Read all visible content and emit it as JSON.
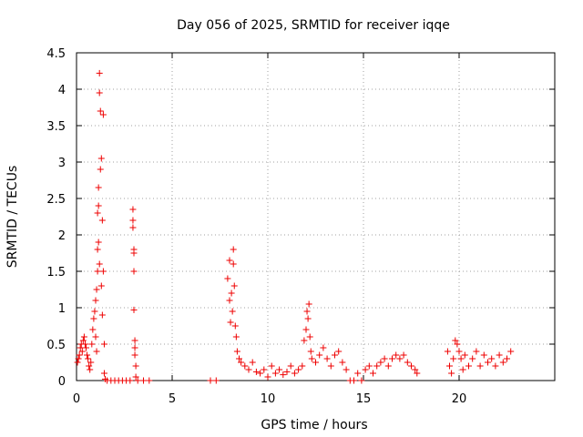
{
  "chart_data": {
    "type": "scatter",
    "title": "Day 056 of 2025, SRMTID for receiver iqqe",
    "xlabel": "GPS time / hours",
    "ylabel": "SRMTID / TECUs",
    "xlim": [
      0,
      25
    ],
    "ylim": [
      0,
      4.5
    ],
    "xticks": [
      "0",
      "5",
      "10",
      "15",
      "20"
    ],
    "xtick_values": [
      0,
      5,
      10,
      15,
      20
    ],
    "yticks": [
      "0",
      "0.5",
      "1",
      "1.5",
      "2",
      "2.5",
      "3",
      "3.5",
      "4",
      "4.5"
    ],
    "ytick_values": [
      0,
      0.5,
      1,
      1.5,
      2,
      2.5,
      3,
      3.5,
      4,
      4.5
    ],
    "grid": true,
    "marker": "plus",
    "color": "#ee0000",
    "series": [
      {
        "name": "SRMTID",
        "points": [
          [
            0.05,
            0.25
          ],
          [
            0.1,
            0.3
          ],
          [
            0.15,
            0.35
          ],
          [
            0.2,
            0.45
          ],
          [
            0.25,
            0.5
          ],
          [
            0.3,
            0.4
          ],
          [
            0.35,
            0.55
          ],
          [
            0.4,
            0.6
          ],
          [
            0.45,
            0.5
          ],
          [
            0.5,
            0.45
          ],
          [
            0.55,
            0.35
          ],
          [
            0.6,
            0.3
          ],
          [
            0.65,
            0.2
          ],
          [
            0.7,
            0.15
          ],
          [
            0.75,
            0.25
          ],
          [
            0.8,
            0.5
          ],
          [
            0.85,
            0.7
          ],
          [
            0.9,
            0.85
          ],
          [
            0.95,
            0.95
          ],
          [
            1.0,
            1.1
          ],
          [
            1.0,
            0.6
          ],
          [
            1.05,
            1.25
          ],
          [
            1.05,
            0.4
          ],
          [
            1.1,
            1.5
          ],
          [
            1.1,
            1.8
          ],
          [
            1.1,
            2.3
          ],
          [
            1.15,
            1.9
          ],
          [
            1.15,
            2.4
          ],
          [
            1.15,
            2.65
          ],
          [
            1.2,
            1.6
          ],
          [
            1.2,
            3.95
          ],
          [
            1.2,
            4.22
          ],
          [
            1.25,
            3.7
          ],
          [
            1.25,
            2.9
          ],
          [
            1.3,
            3.05
          ],
          [
            1.3,
            1.3
          ],
          [
            1.35,
            2.2
          ],
          [
            1.35,
            0.9
          ],
          [
            1.4,
            3.65
          ],
          [
            1.4,
            1.5
          ],
          [
            1.45,
            0.5
          ],
          [
            1.45,
            0.1
          ],
          [
            1.5,
            0.02
          ],
          [
            1.6,
            0.0
          ],
          [
            1.8,
            0.0
          ],
          [
            2.0,
            0.0
          ],
          [
            2.2,
            0.0
          ],
          [
            2.4,
            0.0
          ],
          [
            2.6,
            0.0
          ],
          [
            2.8,
            0.0
          ],
          [
            2.95,
            2.35
          ],
          [
            2.95,
            2.2
          ],
          [
            2.95,
            2.1
          ],
          [
            3.0,
            1.8
          ],
          [
            3.0,
            1.75
          ],
          [
            3.0,
            1.5
          ],
          [
            3.0,
            0.97
          ],
          [
            3.05,
            0.55
          ],
          [
            3.05,
            0.45
          ],
          [
            3.05,
            0.35
          ],
          [
            3.1,
            0.2
          ],
          [
            3.1,
            0.05
          ],
          [
            3.2,
            0.0
          ],
          [
            3.5,
            0.0
          ],
          [
            3.8,
            0.0
          ],
          [
            7.0,
            0.0
          ],
          [
            7.3,
            0.0
          ],
          [
            7.9,
            1.4
          ],
          [
            8.0,
            1.65
          ],
          [
            8.0,
            1.1
          ],
          [
            8.05,
            0.8
          ],
          [
            8.1,
            1.2
          ],
          [
            8.15,
            0.95
          ],
          [
            8.2,
            1.8
          ],
          [
            8.2,
            1.6
          ],
          [
            8.25,
            1.3
          ],
          [
            8.3,
            0.75
          ],
          [
            8.35,
            0.6
          ],
          [
            8.4,
            0.4
          ],
          [
            8.5,
            0.3
          ],
          [
            8.6,
            0.25
          ],
          [
            8.8,
            0.2
          ],
          [
            9.0,
            0.15
          ],
          [
            9.2,
            0.25
          ],
          [
            9.4,
            0.12
          ],
          [
            9.6,
            0.1
          ],
          [
            9.8,
            0.15
          ],
          [
            10.0,
            0.05
          ],
          [
            10.2,
            0.2
          ],
          [
            10.4,
            0.1
          ],
          [
            10.6,
            0.15
          ],
          [
            10.8,
            0.08
          ],
          [
            11.0,
            0.12
          ],
          [
            11.2,
            0.2
          ],
          [
            11.4,
            0.1
          ],
          [
            11.6,
            0.15
          ],
          [
            11.8,
            0.2
          ],
          [
            11.9,
            0.55
          ],
          [
            12.0,
            0.7
          ],
          [
            12.05,
            0.95
          ],
          [
            12.1,
            0.85
          ],
          [
            12.15,
            1.05
          ],
          [
            12.2,
            0.6
          ],
          [
            12.25,
            0.4
          ],
          [
            12.3,
            0.3
          ],
          [
            12.5,
            0.25
          ],
          [
            12.7,
            0.35
          ],
          [
            12.9,
            0.45
          ],
          [
            13.1,
            0.3
          ],
          [
            13.3,
            0.2
          ],
          [
            13.5,
            0.35
          ],
          [
            13.7,
            0.4
          ],
          [
            13.9,
            0.25
          ],
          [
            14.1,
            0.15
          ],
          [
            14.3,
            0.0
          ],
          [
            14.5,
            0.0
          ],
          [
            14.7,
            0.1
          ],
          [
            14.9,
            0.0
          ],
          [
            15.1,
            0.15
          ],
          [
            15.3,
            0.2
          ],
          [
            15.5,
            0.1
          ],
          [
            15.7,
            0.2
          ],
          [
            15.9,
            0.25
          ],
          [
            16.1,
            0.3
          ],
          [
            16.3,
            0.2
          ],
          [
            16.5,
            0.3
          ],
          [
            16.7,
            0.35
          ],
          [
            16.9,
            0.3
          ],
          [
            17.1,
            0.35
          ],
          [
            17.3,
            0.25
          ],
          [
            17.5,
            0.2
          ],
          [
            17.7,
            0.15
          ],
          [
            17.8,
            0.1
          ],
          [
            19.4,
            0.4
          ],
          [
            19.5,
            0.2
          ],
          [
            19.6,
            0.1
          ],
          [
            19.7,
            0.3
          ],
          [
            19.8,
            0.55
          ],
          [
            19.9,
            0.5
          ],
          [
            20.0,
            0.4
          ],
          [
            20.1,
            0.3
          ],
          [
            20.2,
            0.15
          ],
          [
            20.3,
            0.35
          ],
          [
            20.5,
            0.2
          ],
          [
            20.7,
            0.3
          ],
          [
            20.9,
            0.4
          ],
          [
            21.1,
            0.2
          ],
          [
            21.3,
            0.35
          ],
          [
            21.5,
            0.25
          ],
          [
            21.7,
            0.3
          ],
          [
            21.9,
            0.2
          ],
          [
            22.1,
            0.35
          ],
          [
            22.3,
            0.25
          ],
          [
            22.5,
            0.3
          ],
          [
            22.7,
            0.4
          ]
        ]
      }
    ]
  }
}
